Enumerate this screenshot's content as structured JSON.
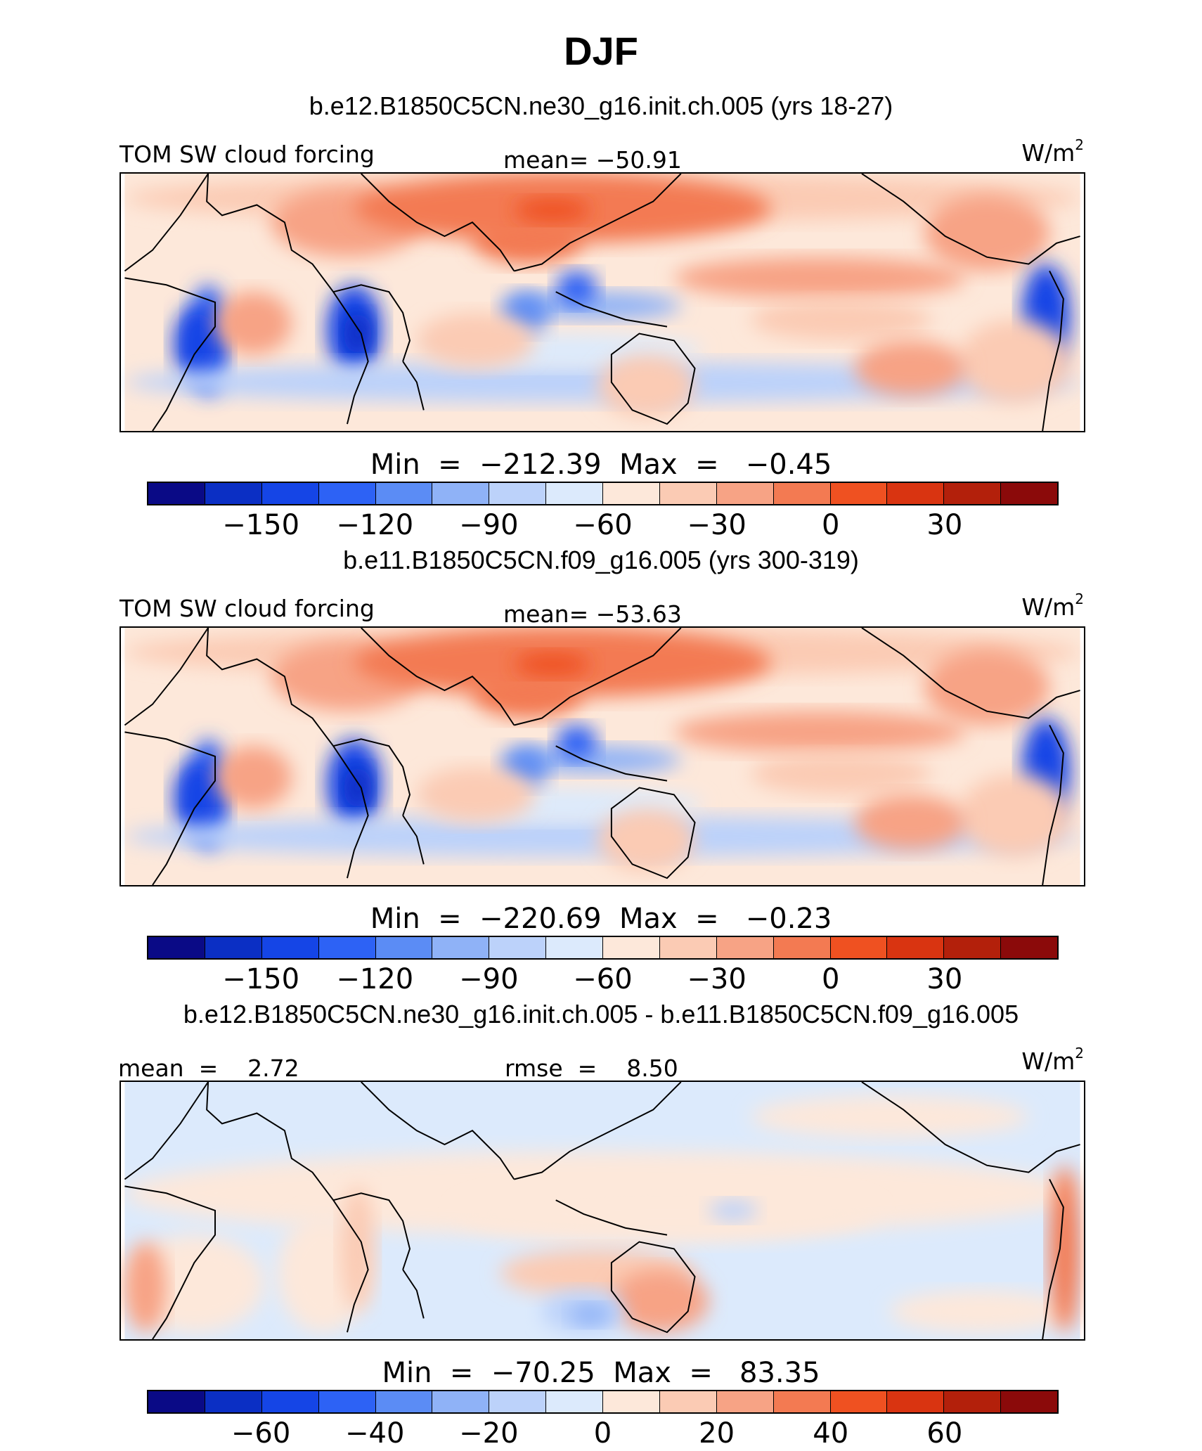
{
  "title": "DJF",
  "panels": [
    {
      "case": "b.e12.B1850C5CN.ne30_g16.init.ch.005 (yrs 18-27)",
      "left_label": "TOM SW cloud forcing",
      "center_label": "mean= −50.91",
      "units": "W/m",
      "units_sup": "2",
      "minmax": "Min  =  −212.39  Max  =   −0.45",
      "colorbar_ticks": [
        "−150",
        "−120",
        "−90",
        "−60",
        "−30",
        "0",
        "30"
      ]
    },
    {
      "case": "b.e11.B1850C5CN.f09_g16.005 (yrs 300-319)",
      "left_label": "TOM SW cloud forcing",
      "center_label": "mean= −53.63",
      "units": "W/m",
      "units_sup": "2",
      "minmax": "Min  =  −220.69  Max  =   −0.23",
      "colorbar_ticks": [
        "−150",
        "−120",
        "−90",
        "−60",
        "−30",
        "0",
        "30"
      ]
    },
    {
      "case": "b.e12.B1850C5CN.ne30_g16.init.ch.005 - b.e11.B1850C5CN.f09_g16.005",
      "left_label": "mean  =    2.72",
      "center_label": "rmse  =    8.50",
      "units": "W/m",
      "units_sup": "2",
      "minmax": "Min  =  −70.25  Max  =   83.35",
      "colorbar_ticks": [
        "−60",
        "−40",
        "−20",
        "0",
        "20",
        "40",
        "60"
      ]
    }
  ],
  "colorbar_colors": [
    "#0a0a86",
    "#0b2fc4",
    "#1545e6",
    "#2d62f5",
    "#5b8cf5",
    "#8fb2f7",
    "#bcd2fa",
    "#dceafc",
    "#fde8da",
    "#fbcbb4",
    "#f7a385",
    "#f37a52",
    "#ef5121",
    "#d93411",
    "#b3200b",
    "#8b0a0a"
  ]
}
